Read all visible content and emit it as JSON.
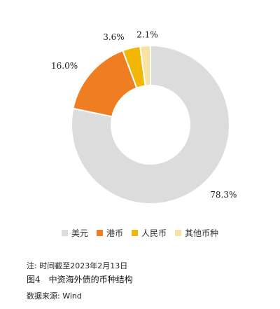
{
  "chart_data": {
    "type": "pie",
    "donut": true,
    "categories": [
      "美元",
      "港币",
      "人民币",
      "其他币种"
    ],
    "values": [
      78.3,
      16.0,
      3.6,
      2.1
    ],
    "labels": [
      "78.3%",
      "16.0%",
      "3.6%",
      "2.1%"
    ],
    "colors": [
      "#dcdcdc",
      "#ef7d22",
      "#f2b705",
      "#f9e3a3"
    ],
    "legend_position": "bottom"
  },
  "note": "注: 时间截至2023年2月13日",
  "figure_title": "图4　中资海外债的币种结构",
  "source": "数据来源: Wind"
}
